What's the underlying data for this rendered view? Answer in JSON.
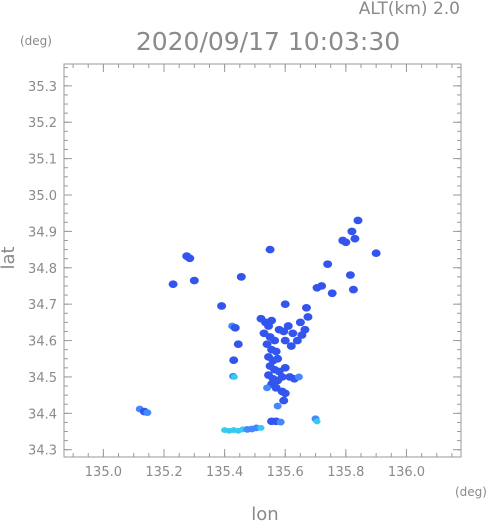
{
  "header": {
    "alt_label": "ALT(km)  2.0",
    "timestamp": "2020/09/17 10:03:30",
    "y_unit": "(deg)",
    "x_unit": "(deg)"
  },
  "chart_data": {
    "type": "heatmap",
    "title": "2020/09/17 10:03:30",
    "subtitle": "ALT(km)  2.0",
    "xlabel": "lon",
    "ylabel": "lat",
    "x_unit": "(deg)",
    "y_unit": "(deg)",
    "xlim": [
      134.87,
      136.18
    ],
    "ylim": [
      34.28,
      35.36
    ],
    "xticks": [
      135.0,
      135.2,
      135.4,
      135.6,
      135.8,
      136.0
    ],
    "xtick_labels": [
      "135.0",
      "135.2",
      "135.4",
      "135.6",
      "135.8",
      "136.0"
    ],
    "yticks": [
      34.3,
      34.4,
      34.5,
      34.6,
      34.7,
      34.8,
      34.9,
      35.0,
      35.1,
      35.2,
      35.3
    ],
    "ytick_labels": [
      "34.3",
      "34.4",
      "34.5",
      "34.6",
      "34.7",
      "34.8",
      "34.9",
      "35.0",
      "35.1",
      "35.2",
      "35.3"
    ],
    "grid": false,
    "colors": {
      "strong": "#3355ee",
      "medium": "#4488ff",
      "weak": "#33ccee",
      "frame": "#9a9a9a"
    },
    "echoes": [
      {
        "x": 135.12,
        "y": 34.412,
        "intensity": "medium"
      },
      {
        "x": 135.135,
        "y": 34.405,
        "intensity": "strong"
      },
      {
        "x": 135.145,
        "y": 34.402,
        "intensity": "medium"
      },
      {
        "x": 135.275,
        "y": 34.832,
        "intensity": "strong"
      },
      {
        "x": 135.285,
        "y": 34.826,
        "intensity": "strong"
      },
      {
        "x": 135.23,
        "y": 34.755,
        "intensity": "strong"
      },
      {
        "x": 135.3,
        "y": 34.765,
        "intensity": "strong"
      },
      {
        "x": 135.39,
        "y": 34.695,
        "intensity": "strong"
      },
      {
        "x": 135.455,
        "y": 34.775,
        "intensity": "strong"
      },
      {
        "x": 135.425,
        "y": 34.64,
        "intensity": "medium"
      },
      {
        "x": 135.435,
        "y": 34.635,
        "intensity": "strong"
      },
      {
        "x": 135.445,
        "y": 34.59,
        "intensity": "strong"
      },
      {
        "x": 135.43,
        "y": 34.546,
        "intensity": "strong"
      },
      {
        "x": 135.428,
        "y": 34.502,
        "intensity": "medium"
      },
      {
        "x": 135.432,
        "y": 34.5,
        "intensity": "weak"
      },
      {
        "x": 135.52,
        "y": 34.66,
        "intensity": "strong"
      },
      {
        "x": 135.535,
        "y": 34.65,
        "intensity": "strong"
      },
      {
        "x": 135.545,
        "y": 34.64,
        "intensity": "strong"
      },
      {
        "x": 135.555,
        "y": 34.655,
        "intensity": "strong"
      },
      {
        "x": 135.53,
        "y": 34.62,
        "intensity": "strong"
      },
      {
        "x": 135.55,
        "y": 34.61,
        "intensity": "strong"
      },
      {
        "x": 135.565,
        "y": 34.6,
        "intensity": "strong"
      },
      {
        "x": 135.54,
        "y": 34.59,
        "intensity": "strong"
      },
      {
        "x": 135.555,
        "y": 34.575,
        "intensity": "strong"
      },
      {
        "x": 135.57,
        "y": 34.57,
        "intensity": "strong"
      },
      {
        "x": 135.545,
        "y": 34.555,
        "intensity": "strong"
      },
      {
        "x": 135.56,
        "y": 34.545,
        "intensity": "strong"
      },
      {
        "x": 135.575,
        "y": 34.55,
        "intensity": "strong"
      },
      {
        "x": 135.55,
        "y": 34.53,
        "intensity": "strong"
      },
      {
        "x": 135.565,
        "y": 34.52,
        "intensity": "strong"
      },
      {
        "x": 135.58,
        "y": 34.515,
        "intensity": "strong"
      },
      {
        "x": 135.545,
        "y": 34.505,
        "intensity": "strong"
      },
      {
        "x": 135.56,
        "y": 34.495,
        "intensity": "strong"
      },
      {
        "x": 135.575,
        "y": 34.49,
        "intensity": "strong"
      },
      {
        "x": 135.59,
        "y": 34.5,
        "intensity": "strong"
      },
      {
        "x": 135.555,
        "y": 34.48,
        "intensity": "strong"
      },
      {
        "x": 135.57,
        "y": 34.47,
        "intensity": "strong"
      },
      {
        "x": 135.54,
        "y": 34.47,
        "intensity": "medium"
      },
      {
        "x": 135.6,
        "y": 34.525,
        "intensity": "strong"
      },
      {
        "x": 135.615,
        "y": 34.5,
        "intensity": "strong"
      },
      {
        "x": 135.63,
        "y": 34.495,
        "intensity": "strong"
      },
      {
        "x": 135.645,
        "y": 34.5,
        "intensity": "medium"
      },
      {
        "x": 135.58,
        "y": 34.63,
        "intensity": "strong"
      },
      {
        "x": 135.595,
        "y": 34.625,
        "intensity": "strong"
      },
      {
        "x": 135.61,
        "y": 34.64,
        "intensity": "strong"
      },
      {
        "x": 135.625,
        "y": 34.62,
        "intensity": "strong"
      },
      {
        "x": 135.6,
        "y": 34.6,
        "intensity": "strong"
      },
      {
        "x": 135.62,
        "y": 34.585,
        "intensity": "strong"
      },
      {
        "x": 135.64,
        "y": 34.6,
        "intensity": "strong"
      },
      {
        "x": 135.65,
        "y": 34.65,
        "intensity": "strong"
      },
      {
        "x": 135.665,
        "y": 34.63,
        "intensity": "strong"
      },
      {
        "x": 135.655,
        "y": 34.615,
        "intensity": "strong"
      },
      {
        "x": 135.67,
        "y": 34.69,
        "intensity": "strong"
      },
      {
        "x": 135.675,
        "y": 34.665,
        "intensity": "strong"
      },
      {
        "x": 135.59,
        "y": 34.46,
        "intensity": "strong"
      },
      {
        "x": 135.6,
        "y": 34.455,
        "intensity": "strong"
      },
      {
        "x": 135.595,
        "y": 34.435,
        "intensity": "strong"
      },
      {
        "x": 135.575,
        "y": 34.42,
        "intensity": "medium"
      },
      {
        "x": 135.57,
        "y": 34.378,
        "intensity": "strong"
      },
      {
        "x": 135.555,
        "y": 34.378,
        "intensity": "strong"
      },
      {
        "x": 135.585,
        "y": 34.376,
        "intensity": "medium"
      },
      {
        "x": 135.4,
        "y": 34.354,
        "intensity": "weak"
      },
      {
        "x": 135.415,
        "y": 34.352,
        "intensity": "weak"
      },
      {
        "x": 135.43,
        "y": 34.354,
        "intensity": "weak"
      },
      {
        "x": 135.445,
        "y": 34.352,
        "intensity": "weak"
      },
      {
        "x": 135.46,
        "y": 34.356,
        "intensity": "weak"
      },
      {
        "x": 135.475,
        "y": 34.356,
        "intensity": "medium"
      },
      {
        "x": 135.49,
        "y": 34.357,
        "intensity": "medium"
      },
      {
        "x": 135.505,
        "y": 34.36,
        "intensity": "medium"
      },
      {
        "x": 135.52,
        "y": 34.36,
        "intensity": "weak"
      },
      {
        "x": 135.7,
        "y": 34.385,
        "intensity": "medium"
      },
      {
        "x": 135.705,
        "y": 34.378,
        "intensity": "weak"
      },
      {
        "x": 135.74,
        "y": 34.81,
        "intensity": "strong"
      },
      {
        "x": 135.72,
        "y": 34.75,
        "intensity": "strong"
      },
      {
        "x": 135.705,
        "y": 34.745,
        "intensity": "strong"
      },
      {
        "x": 135.755,
        "y": 34.73,
        "intensity": "strong"
      },
      {
        "x": 135.79,
        "y": 34.875,
        "intensity": "strong"
      },
      {
        "x": 135.8,
        "y": 34.87,
        "intensity": "strong"
      },
      {
        "x": 135.82,
        "y": 34.9,
        "intensity": "strong"
      },
      {
        "x": 135.83,
        "y": 34.88,
        "intensity": "strong"
      },
      {
        "x": 135.84,
        "y": 34.93,
        "intensity": "strong"
      },
      {
        "x": 135.815,
        "y": 34.78,
        "intensity": "strong"
      },
      {
        "x": 135.825,
        "y": 34.74,
        "intensity": "strong"
      },
      {
        "x": 135.9,
        "y": 34.84,
        "intensity": "strong"
      },
      {
        "x": 135.55,
        "y": 34.85,
        "intensity": "strong"
      },
      {
        "x": 135.6,
        "y": 34.7,
        "intensity": "strong"
      }
    ]
  }
}
